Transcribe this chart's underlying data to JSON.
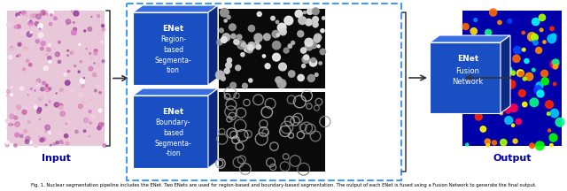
{
  "bg_color": "#ffffff",
  "input_label": "Input",
  "output_label": "Output",
  "enet1_top": "ENet",
  "enet1_body": "Region-\nbased\nSegmenta-\ntion",
  "enet2_top": "ENet",
  "enet2_body": "Boundary-\nbased\nSegmenta-\n-tion",
  "fusion_top": "ENet",
  "fusion_body": "Fusion\nNetwork",
  "cube_face": "#1a4fc4",
  "cube_top": "#3a6fe4",
  "cube_side": "#0a2a84",
  "dashed_color": "#4499ff",
  "arrow_color": "#333333",
  "label_color": "#0000aa",
  "caption": "Fig. 1. Nuclear segmentation pipeline includes the ENet. Two ENets are used for region-based and boundary-based segmentation. The output of each ENet is fused using a Fusion Network to generate the final output."
}
